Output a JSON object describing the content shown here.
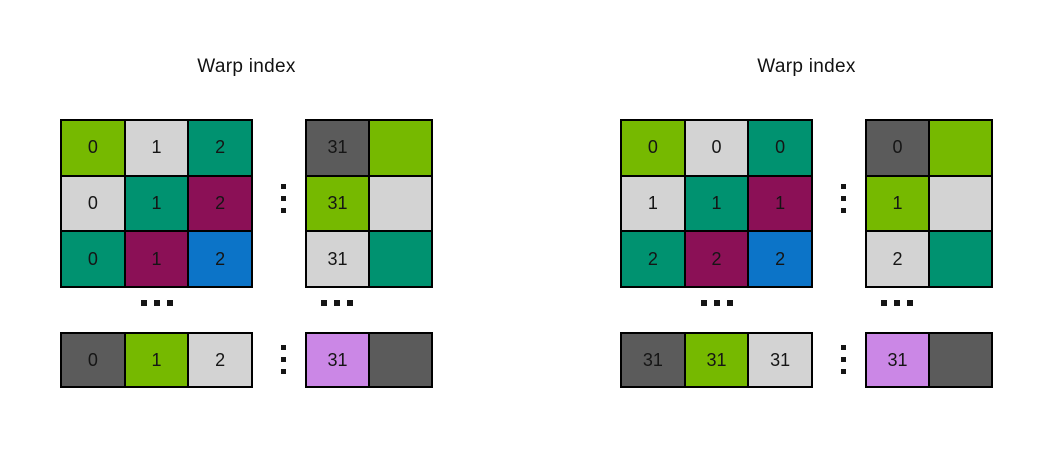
{
  "colors": {
    "lime": "#76b900",
    "gray_light": "#d3d3d3",
    "teal": "#009270",
    "magenta": "#8b1056",
    "blue": "#0c74c8",
    "gray_dark": "#5b5b5b",
    "purple": "#cb87e6",
    "border": "#000000",
    "text": "#151515",
    "background": "#ffffff"
  },
  "panels": [
    {
      "title": "Warp index",
      "main": [
        [
          {
            "label": "0",
            "color": "lime"
          },
          {
            "label": "1",
            "color": "gray_light"
          },
          {
            "label": "2",
            "color": "teal"
          }
        ],
        [
          {
            "label": "0",
            "color": "gray_light"
          },
          {
            "label": "1",
            "color": "teal"
          },
          {
            "label": "2",
            "color": "magenta"
          }
        ],
        [
          {
            "label": "0",
            "color": "teal"
          },
          {
            "label": "1",
            "color": "magenta"
          },
          {
            "label": "2",
            "color": "blue"
          }
        ]
      ],
      "side": [
        [
          {
            "label": "31",
            "color": "gray_dark"
          },
          {
            "label": "",
            "color": "lime"
          }
        ],
        [
          {
            "label": "31",
            "color": "lime"
          },
          {
            "label": "",
            "color": "gray_light"
          }
        ],
        [
          {
            "label": "31",
            "color": "gray_light"
          },
          {
            "label": "",
            "color": "teal"
          }
        ]
      ],
      "bottom_main": [
        [
          {
            "label": "0",
            "color": "gray_dark"
          },
          {
            "label": "1",
            "color": "lime"
          },
          {
            "label": "2",
            "color": "gray_light"
          }
        ]
      ],
      "bottom_side": [
        [
          {
            "label": "31",
            "color": "purple"
          },
          {
            "label": "",
            "color": "gray_dark"
          }
        ]
      ]
    },
    {
      "title": "Warp index",
      "main": [
        [
          {
            "label": "0",
            "color": "lime"
          },
          {
            "label": "0",
            "color": "gray_light"
          },
          {
            "label": "0",
            "color": "teal"
          }
        ],
        [
          {
            "label": "1",
            "color": "gray_light"
          },
          {
            "label": "1",
            "color": "teal"
          },
          {
            "label": "1",
            "color": "magenta"
          }
        ],
        [
          {
            "label": "2",
            "color": "teal"
          },
          {
            "label": "2",
            "color": "magenta"
          },
          {
            "label": "2",
            "color": "blue"
          }
        ]
      ],
      "side": [
        [
          {
            "label": "0",
            "color": "gray_dark"
          },
          {
            "label": "",
            "color": "lime"
          }
        ],
        [
          {
            "label": "1",
            "color": "lime"
          },
          {
            "label": "",
            "color": "gray_light"
          }
        ],
        [
          {
            "label": "2",
            "color": "gray_light"
          },
          {
            "label": "",
            "color": "teal"
          }
        ]
      ],
      "bottom_main": [
        [
          {
            "label": "31",
            "color": "gray_dark"
          },
          {
            "label": "31",
            "color": "lime"
          },
          {
            "label": "31",
            "color": "gray_light"
          }
        ]
      ],
      "bottom_side": [
        [
          {
            "label": "31",
            "color": "purple"
          },
          {
            "label": "",
            "color": "gray_dark"
          }
        ]
      ]
    }
  ]
}
